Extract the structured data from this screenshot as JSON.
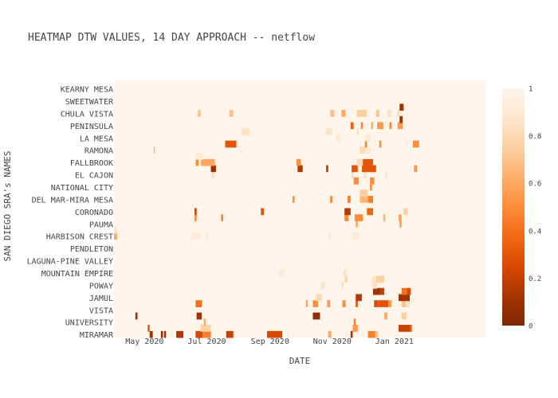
{
  "chart_data": {
    "type": "heatmap",
    "title": "HEATMAP DTW VALUES, 14 DAY APPROACH -- netflow",
    "xlabel": "DATE",
    "ylabel": "SAN DIEGO SRA's NAMES",
    "x_range": [
      "2020-04-01",
      "2021-04-01"
    ],
    "x_ticks": [
      {
        "date": "2020-05-01",
        "label": "May 2020"
      },
      {
        "date": "2020-07-01",
        "label": "Jul 2020"
      },
      {
        "date": "2020-09-01",
        "label": "Sep 2020"
      },
      {
        "date": "2020-11-01",
        "label": "Nov 2020"
      },
      {
        "date": "2021-01-01",
        "label": "Jan 2021"
      }
    ],
    "y_categories": [
      "MIRAMAR",
      "",
      "UNIVERSITY",
      "",
      "VISTA",
      "",
      "JAMUL",
      "",
      "POWAY",
      "",
      "MOUNTAIN EMPIRE",
      "",
      "LAGUNA-PINE VALLEY",
      "",
      "PENDLETON",
      "",
      "HARBISON CREST",
      "",
      "PAUMA",
      "",
      "CORONADO",
      "",
      "DEL MAR-MIRA MESA",
      "",
      "NATIONAL CITY",
      "",
      "EL CAJON",
      "",
      "FALLBROOK",
      "",
      "RAMONA",
      "",
      "LA MESA",
      "",
      "PENINSULA",
      "",
      "CHULA VISTA",
      "",
      "SWEETWATER",
      "",
      "KEARNY MESA",
      ""
    ],
    "background_value": 1,
    "colorbar": {
      "min": 0,
      "max": 1,
      "ticks": [
        "0",
        "0.2",
        "0.4",
        "0.6",
        "0.8",
        "1"
      ],
      "colors": [
        "#7f2704",
        "#a63603",
        "#d94801",
        "#f16913",
        "#fd8d3c",
        "#fdae6b",
        "#fdd0a2",
        "#fee6ce",
        "#fff5eb"
      ]
    },
    "cells": [
      {
        "row": 0,
        "start": "2020-05-06",
        "end": "2020-05-09",
        "value": 0.1
      },
      {
        "row": 0,
        "start": "2020-05-17",
        "end": "2020-05-19",
        "value": 0.05
      },
      {
        "row": 0,
        "start": "2020-05-20",
        "end": "2020-05-22",
        "value": 0.1
      },
      {
        "row": 0,
        "start": "2020-06-01",
        "end": "2020-06-08",
        "value": 0.15
      },
      {
        "row": 0,
        "start": "2020-06-20",
        "end": "2020-06-27",
        "value": 0.25
      },
      {
        "row": 0,
        "start": "2020-06-27",
        "end": "2020-07-05",
        "value": 0.45
      },
      {
        "row": 0,
        "start": "2020-07-20",
        "end": "2020-07-27",
        "value": 0.2
      },
      {
        "row": 0,
        "start": "2020-08-29",
        "end": "2020-09-13",
        "value": 0.25
      },
      {
        "row": 0,
        "start": "2020-10-28",
        "end": "2020-10-31",
        "value": 0.6
      },
      {
        "row": 0,
        "start": "2020-11-19",
        "end": "2020-11-21",
        "value": 0.1
      },
      {
        "row": 0,
        "start": "2020-12-06",
        "end": "2020-12-13",
        "value": 0.45
      },
      {
        "row": 0,
        "start": "2020-12-13",
        "end": "2020-12-16",
        "value": 0.7
      },
      {
        "row": 1,
        "start": "2020-05-04",
        "end": "2020-05-06",
        "value": 0.3
      },
      {
        "row": 1,
        "start": "2020-06-25",
        "end": "2020-07-05",
        "value": 0.75
      },
      {
        "row": 1,
        "start": "2020-11-21",
        "end": "2020-11-26",
        "value": 0.55
      },
      {
        "row": 1,
        "start": "2021-01-16",
        "end": "2021-01-18",
        "value": 0.3
      },
      {
        "row": 1,
        "start": "2021-01-05",
        "end": "2021-01-16",
        "value": 0.2
      },
      {
        "row": 2,
        "start": "2020-06-28",
        "end": "2020-06-30",
        "value": 0.6
      },
      {
        "row": 2,
        "start": "2020-11-22",
        "end": "2020-11-24",
        "value": 0.45
      },
      {
        "row": 3,
        "start": "2020-04-22",
        "end": "2020-04-24",
        "value": 0.05
      },
      {
        "row": 3,
        "start": "2020-06-21",
        "end": "2020-06-26",
        "value": 0.1
      },
      {
        "row": 3,
        "start": "2020-10-13",
        "end": "2020-10-20",
        "value": 0.05
      },
      {
        "row": 3,
        "start": "2020-12-22",
        "end": "2020-12-25",
        "value": 0.6
      },
      {
        "row": 3,
        "start": "2021-01-08",
        "end": "2021-01-13",
        "value": 0.75
      },
      {
        "row": 5,
        "start": "2020-06-20",
        "end": "2020-06-26",
        "value": 0.4
      },
      {
        "row": 5,
        "start": "2020-10-06",
        "end": "2020-10-08",
        "value": 0.6
      },
      {
        "row": 5,
        "start": "2020-10-13",
        "end": "2020-10-18",
        "value": 0.5
      },
      {
        "row": 5,
        "start": "2020-10-27",
        "end": "2020-10-30",
        "value": 0.55
      },
      {
        "row": 5,
        "start": "2020-11-11",
        "end": "2020-11-14",
        "value": 0.5
      },
      {
        "row": 5,
        "start": "2020-11-24",
        "end": "2020-11-26",
        "value": 0.3
      },
      {
        "row": 5,
        "start": "2020-12-12",
        "end": "2020-12-15",
        "value": 0.25
      },
      {
        "row": 5,
        "start": "2020-12-15",
        "end": "2020-12-26",
        "value": 0.3
      },
      {
        "row": 5,
        "start": "2020-12-26",
        "end": "2020-12-29",
        "value": 0.55
      },
      {
        "row": 5,
        "start": "2021-01-08",
        "end": "2021-01-12",
        "value": 0.7
      },
      {
        "row": 5,
        "start": "2021-01-12",
        "end": "2021-01-16",
        "value": 0.85
      },
      {
        "row": 6,
        "start": "2020-10-16",
        "end": "2020-10-22",
        "value": 0.8
      },
      {
        "row": 6,
        "start": "2020-11-24",
        "end": "2020-11-30",
        "value": 0.15
      },
      {
        "row": 6,
        "start": "2021-01-05",
        "end": "2021-01-16",
        "value": 0.1
      },
      {
        "row": 7,
        "start": "2020-12-11",
        "end": "2020-12-18",
        "value": 0.1
      },
      {
        "row": 7,
        "start": "2020-12-18",
        "end": "2020-12-22",
        "value": 0.2
      },
      {
        "row": 7,
        "start": "2021-01-08",
        "end": "2021-01-13",
        "value": 0.4
      },
      {
        "row": 7,
        "start": "2021-01-13",
        "end": "2021-01-17",
        "value": 0.25
      },
      {
        "row": 8,
        "start": "2020-10-21",
        "end": "2020-10-25",
        "value": 0.85
      },
      {
        "row": 8,
        "start": "2020-11-10",
        "end": "2020-11-12",
        "value": 0.85
      },
      {
        "row": 8,
        "start": "2020-12-10",
        "end": "2020-12-15",
        "value": 0.85
      },
      {
        "row": 9,
        "start": "2020-11-13",
        "end": "2020-11-16",
        "value": 0.8
      },
      {
        "row": 9,
        "start": "2020-12-10",
        "end": "2020-12-14",
        "value": 0.85
      },
      {
        "row": 9,
        "start": "2020-12-14",
        "end": "2020-12-22",
        "value": 0.75
      },
      {
        "row": 10,
        "start": "2020-09-10",
        "end": "2020-09-15",
        "value": 0.9
      },
      {
        "row": 10,
        "start": "2020-11-12",
        "end": "2020-11-15",
        "value": 0.85
      },
      {
        "row": 16,
        "start": "2020-04-01",
        "end": "2020-04-04",
        "value": 0.6
      },
      {
        "row": 16,
        "start": "2020-06-15",
        "end": "2020-06-25",
        "value": 0.92
      },
      {
        "row": 16,
        "start": "2020-06-30",
        "end": "2020-07-02",
        "value": 0.9
      },
      {
        "row": 16,
        "start": "2020-10-28",
        "end": "2020-10-31",
        "value": 0.9
      },
      {
        "row": 16,
        "start": "2020-11-20",
        "end": "2020-11-27",
        "value": 0.9
      },
      {
        "row": 17,
        "start": "2020-04-01",
        "end": "2020-04-04",
        "value": 0.85
      },
      {
        "row": 18,
        "start": "2020-11-24",
        "end": "2020-11-26",
        "value": 0.6
      },
      {
        "row": 18,
        "start": "2021-01-06",
        "end": "2021-01-08",
        "value": 0.55
      },
      {
        "row": 19,
        "start": "2020-06-19",
        "end": "2020-06-21",
        "value": 0.5
      },
      {
        "row": 19,
        "start": "2020-07-15",
        "end": "2020-07-17",
        "value": 0.45
      },
      {
        "row": 19,
        "start": "2020-11-13",
        "end": "2020-11-17",
        "value": 0.5
      },
      {
        "row": 19,
        "start": "2020-11-23",
        "end": "2020-12-01",
        "value": 0.5
      },
      {
        "row": 19,
        "start": "2020-12-21",
        "end": "2020-12-23",
        "value": 0.65
      },
      {
        "row": 19,
        "start": "2021-01-05",
        "end": "2021-01-08",
        "value": 0.6
      },
      {
        "row": 20,
        "start": "2020-06-19",
        "end": "2020-06-21",
        "value": 0.2
      },
      {
        "row": 20,
        "start": "2020-08-23",
        "end": "2020-08-26",
        "value": 0.3
      },
      {
        "row": 20,
        "start": "2020-11-13",
        "end": "2020-11-19",
        "value": 0.15
      },
      {
        "row": 20,
        "start": "2020-12-05",
        "end": "2020-12-11",
        "value": 0.35
      },
      {
        "row": 20,
        "start": "2021-01-10",
        "end": "2021-01-14",
        "value": 0.75
      },
      {
        "row": 22,
        "start": "2020-09-23",
        "end": "2020-09-25",
        "value": 0.5
      },
      {
        "row": 22,
        "start": "2020-10-30",
        "end": "2020-11-01",
        "value": 0.45
      },
      {
        "row": 22,
        "start": "2020-11-16",
        "end": "2020-11-19",
        "value": 0.45
      },
      {
        "row": 22,
        "start": "2020-11-28",
        "end": "2020-12-06",
        "value": 0.65
      },
      {
        "row": 22,
        "start": "2020-12-06",
        "end": "2020-12-11",
        "value": 0.45
      },
      {
        "row": 23,
        "start": "2020-11-28",
        "end": "2020-12-06",
        "value": 0.75
      },
      {
        "row": 24,
        "start": "2020-12-08",
        "end": "2020-12-10",
        "value": 0.5
      },
      {
        "row": 25,
        "start": "2020-11-22",
        "end": "2020-11-27",
        "value": 0.5
      },
      {
        "row": 25,
        "start": "2020-12-08",
        "end": "2020-12-12",
        "value": 0.5
      },
      {
        "row": 26,
        "start": "2020-07-06",
        "end": "2020-07-08",
        "value": 0.8
      },
      {
        "row": 26,
        "start": "2020-11-20",
        "end": "2020-11-22",
        "value": 0.8
      },
      {
        "row": 26,
        "start": "2020-12-02",
        "end": "2020-12-04",
        "value": 0.85
      },
      {
        "row": 26,
        "start": "2020-12-23",
        "end": "2020-12-25",
        "value": 0.85
      },
      {
        "row": 27,
        "start": "2020-07-05",
        "end": "2020-07-10",
        "value": 0.1
      },
      {
        "row": 27,
        "start": "2020-09-28",
        "end": "2020-10-03",
        "value": 0.15
      },
      {
        "row": 27,
        "start": "2020-10-26",
        "end": "2020-10-28",
        "value": 0.15
      },
      {
        "row": 27,
        "start": "2020-11-20",
        "end": "2020-11-26",
        "value": 0.3
      },
      {
        "row": 27,
        "start": "2020-11-30",
        "end": "2020-12-14",
        "value": 0.3
      },
      {
        "row": 27,
        "start": "2021-01-20",
        "end": "2021-01-23",
        "value": 0.55
      },
      {
        "row": 28,
        "start": "2020-06-20",
        "end": "2020-06-23",
        "value": 0.5
      },
      {
        "row": 28,
        "start": "2020-06-25",
        "end": "2020-07-09",
        "value": 0.6
      },
      {
        "row": 28,
        "start": "2020-09-27",
        "end": "2020-10-01",
        "value": 0.5
      },
      {
        "row": 28,
        "start": "2020-11-25",
        "end": "2020-12-01",
        "value": 0.8
      },
      {
        "row": 28,
        "start": "2020-12-01",
        "end": "2020-12-11",
        "value": 0.3
      },
      {
        "row": 29,
        "start": "2020-06-20",
        "end": "2020-06-27",
        "value": 0.9
      },
      {
        "row": 30,
        "start": "2020-05-10",
        "end": "2020-05-11",
        "value": 0.6
      },
      {
        "row": 30,
        "start": "2020-11-28",
        "end": "2020-12-03",
        "value": 0.8
      },
      {
        "row": 30,
        "start": "2020-12-03",
        "end": "2020-12-09",
        "value": 0.9
      },
      {
        "row": 31,
        "start": "2020-07-19",
        "end": "2020-07-30",
        "value": 0.3
      },
      {
        "row": 31,
        "start": "2020-12-03",
        "end": "2020-12-05",
        "value": 0.45
      },
      {
        "row": 31,
        "start": "2020-12-17",
        "end": "2020-12-19",
        "value": 0.5
      },
      {
        "row": 31,
        "start": "2021-01-12",
        "end": "2021-01-14",
        "value": 0.9
      },
      {
        "row": 31,
        "start": "2021-01-19",
        "end": "2021-01-25",
        "value": 0.5
      },
      {
        "row": 32,
        "start": "2020-11-05",
        "end": "2020-11-09",
        "value": 0.9
      },
      {
        "row": 32,
        "start": "2020-12-03",
        "end": "2020-12-09",
        "value": 0.9
      },
      {
        "row": 33,
        "start": "2020-08-04",
        "end": "2020-08-12",
        "value": 0.85
      },
      {
        "row": 33,
        "start": "2020-10-26",
        "end": "2020-11-01",
        "value": 0.85
      },
      {
        "row": 33,
        "start": "2020-11-25",
        "end": "2020-11-27",
        "value": 0.85
      },
      {
        "row": 34,
        "start": "2020-11-19",
        "end": "2020-11-22",
        "value": 0.35
      },
      {
        "row": 34,
        "start": "2020-11-29",
        "end": "2020-12-01",
        "value": 0.5
      },
      {
        "row": 34,
        "start": "2020-12-09",
        "end": "2020-12-11",
        "value": 0.6
      },
      {
        "row": 34,
        "start": "2020-12-15",
        "end": "2020-12-21",
        "value": 0.55
      },
      {
        "row": 34,
        "start": "2020-12-27",
        "end": "2020-12-29",
        "value": 0.5
      },
      {
        "row": 34,
        "start": "2021-01-04",
        "end": "2021-01-09",
        "value": 0.55
      },
      {
        "row": 35,
        "start": "2021-01-06",
        "end": "2021-01-09",
        "value": 0.1
      },
      {
        "row": 36,
        "start": "2020-06-22",
        "end": "2020-06-25",
        "value": 0.7
      },
      {
        "row": 36,
        "start": "2020-07-23",
        "end": "2020-07-27",
        "value": 0.7
      },
      {
        "row": 36,
        "start": "2020-10-30",
        "end": "2020-11-03",
        "value": 0.7
      },
      {
        "row": 36,
        "start": "2020-11-10",
        "end": "2020-11-14",
        "value": 0.6
      },
      {
        "row": 36,
        "start": "2020-11-25",
        "end": "2020-12-05",
        "value": 0.75
      },
      {
        "row": 36,
        "start": "2020-12-14",
        "end": "2020-12-17",
        "value": 0.7
      },
      {
        "row": 36,
        "start": "2020-12-25",
        "end": "2020-12-29",
        "value": 0.85
      },
      {
        "row": 36,
        "start": "2021-01-04",
        "end": "2021-01-06",
        "value": 0.8
      },
      {
        "row": 37,
        "start": "2021-01-06",
        "end": "2021-01-10",
        "value": 0.1
      }
    ]
  }
}
